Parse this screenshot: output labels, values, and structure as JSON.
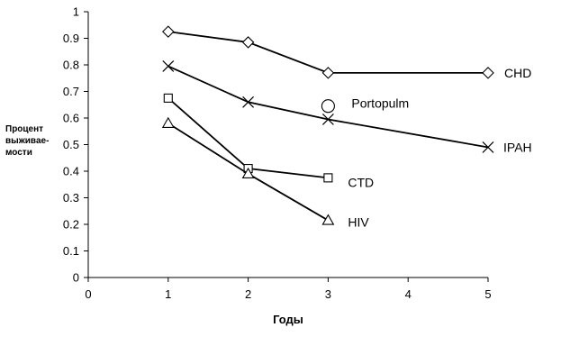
{
  "chart_data": {
    "type": "line",
    "xlabel": "Годы",
    "ylabel": "Процент выживае-мости",
    "xlim": [
      0,
      5
    ],
    "ylim": [
      0,
      1
    ],
    "x_ticks": [
      "0",
      "1",
      "2",
      "3",
      "4",
      "5"
    ],
    "y_ticks": [
      "0",
      "0.1",
      "0.2",
      "0.3",
      "0.4",
      "0.5",
      "0.6",
      "0.7",
      "0.8",
      "0.9",
      "1"
    ],
    "grid": false,
    "legend": "direct labels beside series",
    "series": [
      {
        "name": "CHD",
        "marker": "diamond",
        "x": [
          1,
          2,
          3,
          5
        ],
        "y": [
          0.925,
          0.885,
          0.77,
          0.77
        ]
      },
      {
        "name": "IPAH",
        "marker": "x",
        "x": [
          1,
          2,
          3,
          5
        ],
        "y": [
          0.795,
          0.66,
          0.595,
          0.49
        ]
      },
      {
        "name": "Portopulm",
        "marker": "circle",
        "x": [
          3
        ],
        "y": [
          0.645
        ]
      },
      {
        "name": "CTD",
        "marker": "square",
        "x": [
          1,
          2,
          3
        ],
        "y": [
          0.675,
          0.41,
          0.375
        ]
      },
      {
        "name": "HIV",
        "marker": "triangle",
        "x": [
          1,
          2,
          3
        ],
        "y": [
          0.58,
          0.39,
          0.215
        ]
      }
    ]
  }
}
